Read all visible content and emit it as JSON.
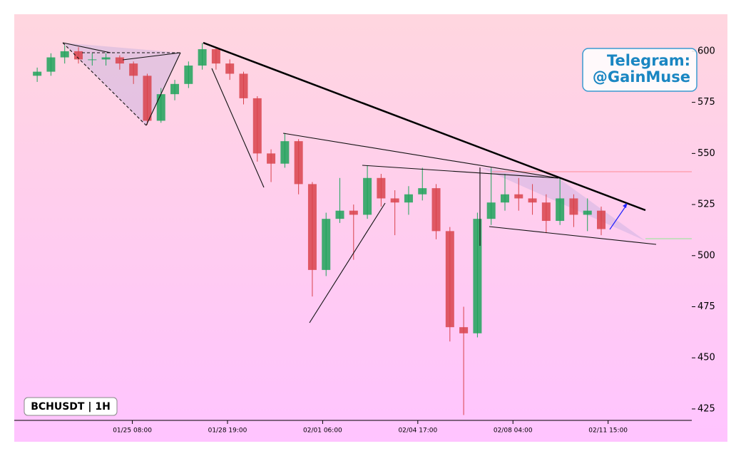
{
  "chart_data": {
    "type": "candlestick",
    "label": "BCHUSDT | 1H",
    "annotation": [
      "Telegram:",
      "@GainMuse"
    ],
    "up_color": "#1fa35a",
    "down_color": "#d9434b",
    "x": [
      0,
      12,
      24,
      36,
      48,
      60,
      72,
      84,
      96,
      108,
      120,
      132,
      144,
      156,
      168,
      180,
      192,
      204,
      216,
      228,
      240,
      252,
      264,
      276,
      288,
      300,
      312,
      324,
      336,
      348,
      360,
      372,
      384,
      396,
      408,
      420,
      432,
      444,
      456,
      468,
      480,
      492
    ],
    "open": [
      588,
      590,
      597,
      600,
      596,
      596,
      597,
      594,
      588,
      566,
      579,
      584,
      593,
      601,
      594,
      589,
      577,
      550,
      545,
      556,
      535,
      493,
      518,
      522,
      520,
      538,
      528,
      526,
      530,
      533,
      512,
      465,
      462,
      518,
      526,
      530,
      528,
      526,
      517,
      528,
      520,
      522
    ],
    "high": [
      592,
      599,
      603,
      602,
      599,
      599,
      598,
      595,
      589,
      582,
      586,
      595,
      604,
      602,
      596,
      590,
      578,
      552,
      560,
      557,
      536,
      521,
      538,
      525,
      544,
      540,
      532,
      534,
      543,
      535,
      514,
      475,
      521,
      543,
      540,
      538,
      535,
      530,
      538,
      530,
      528,
      524
    ],
    "low": [
      585,
      588,
      594,
      594,
      593,
      593,
      591,
      584,
      564,
      565,
      576,
      582,
      591,
      591,
      586,
      574,
      546,
      536,
      543,
      530,
      480,
      490,
      516,
      498,
      518,
      524,
      510,
      520,
      527,
      508,
      458,
      422,
      460,
      515,
      522,
      522,
      520,
      511,
      515,
      514,
      512,
      510
    ],
    "close": [
      590,
      597,
      600,
      596,
      596,
      597,
      594,
      588,
      566,
      579,
      584,
      593,
      601,
      594,
      589,
      577,
      550,
      545,
      556,
      535,
      493,
      518,
      522,
      520,
      538,
      528,
      526,
      530,
      533,
      512,
      465,
      462,
      518,
      526,
      530,
      528,
      526,
      517,
      528,
      520,
      522,
      513
    ],
    "xlim": [
      -20,
      571
    ],
    "xticks": [
      {
        "value": 83,
        "label": "01/25 08:00"
      },
      {
        "value": 166,
        "label": "01/28 19:00"
      },
      {
        "value": 249,
        "label": "02/01 06:00"
      },
      {
        "value": 332,
        "label": "02/04 17:00"
      },
      {
        "value": 415,
        "label": "02/08 04:00"
      },
      {
        "value": 498,
        "label": "02/11 15:00"
      }
    ],
    "ylim": [
      419.4,
      618.1
    ],
    "yticks": [
      425,
      450,
      475,
      500,
      525,
      550,
      575,
      600
    ]
  }
}
